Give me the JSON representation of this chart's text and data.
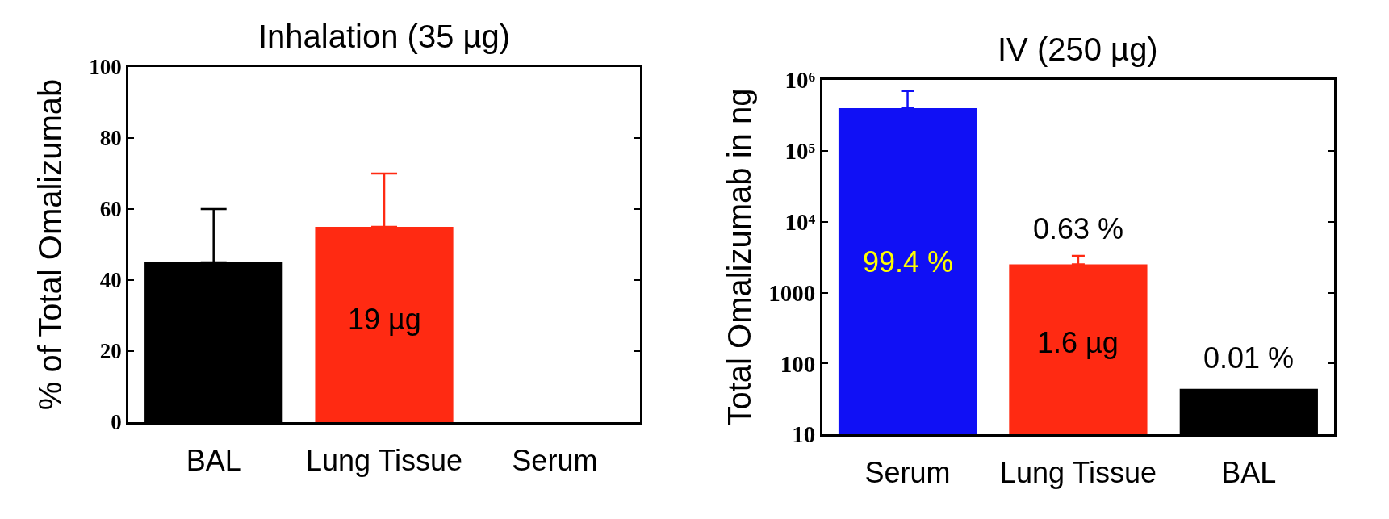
{
  "chart_data": [
    {
      "type": "bar",
      "title": "Inhalation (35 µg)",
      "ylabel": "% of Total Omalizumab",
      "categories": [
        "BAL",
        "Lung Tissue",
        "Serum"
      ],
      "values": [
        45,
        55,
        0
      ],
      "colors": [
        "#000000",
        "#ff2a12",
        "#000000"
      ],
      "errors": [
        [
          45,
          60
        ],
        [
          55,
          70
        ],
        null
      ],
      "ylim": [
        0,
        100
      ],
      "yticks": [
        0,
        20,
        40,
        60,
        80,
        100
      ],
      "annotations": [
        "19 µg"
      ]
    },
    {
      "type": "bar",
      "title": "IV (250 µg)",
      "ylabel": "Total Omalizumab in ng",
      "categories": [
        "Serum",
        "Lung Tissue",
        "BAL"
      ],
      "values": [
        400000,
        2500,
        44
      ],
      "colors": [
        "#1010f5",
        "#ff2a12",
        "#000000"
      ],
      "errors": [
        [
          400000,
          700000
        ],
        [
          2500,
          3300
        ],
        null
      ],
      "log": true,
      "ylim": [
        10,
        1000000
      ],
      "yticks": [
        10,
        100,
        1000,
        {
          "value": 10000,
          "label": "10⁴"
        },
        {
          "value": 100000,
          "label": "10⁵"
        },
        {
          "value": 1000000,
          "label": "10⁶"
        }
      ],
      "annotations": [
        "99.4 %",
        "0.63 %",
        "1.6 µg",
        "0.01 %"
      ]
    }
  ]
}
